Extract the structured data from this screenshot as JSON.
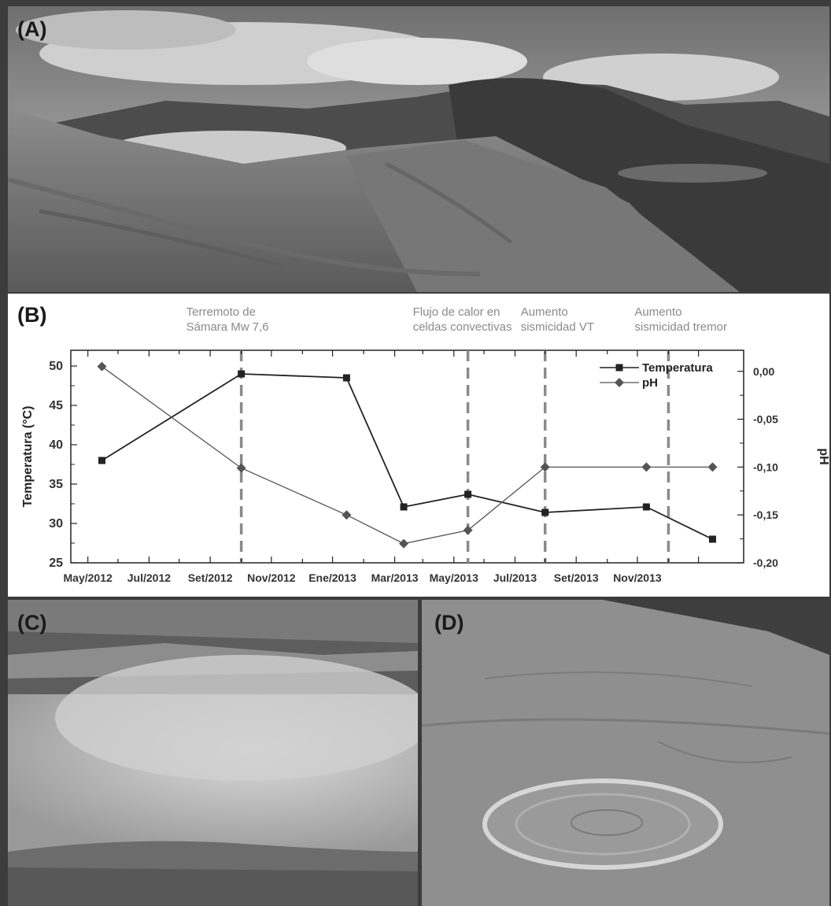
{
  "panels": {
    "a_label": "(A)",
    "b_label": "(B)",
    "c_label": "(C)",
    "d_label": "(D)"
  },
  "colors": {
    "temperature": "#222222",
    "ph": "#555555",
    "event_lines": "#8a8a8a"
  },
  "chart_data": {
    "type": "line",
    "x": [
      "2012-04-15",
      "2012-09-01",
      "2012-12-15",
      "2013-02-10",
      "2013-04-15",
      "2013-07-01",
      "2013-10-10",
      "2013-12-15"
    ],
    "x_ticks": [
      "May/2012",
      "Jul/2012",
      "Set/2012",
      "Nov/2012",
      "Ene/2013",
      "Mar/2013",
      "May/2013",
      "Jul/2013",
      "Set/2013",
      "Nov/2013"
    ],
    "ylabel": "Temperatura (°C)",
    "ylabel_right": "pH",
    "ylim": [
      25,
      52
    ],
    "ylim_right": [
      -0.2,
      0.022
    ],
    "y_ticks": [
      "25",
      "30",
      "35",
      "40",
      "45",
      "50"
    ],
    "y_ticks_right": [
      "0,00",
      "-0,05",
      "-0,10",
      "-0,15",
      "-0,20"
    ],
    "series": [
      {
        "name": "Temperatura",
        "axis": "left",
        "marker": "square",
        "points": [
          {
            "x": "2012-04-15",
            "y": 38.0
          },
          {
            "x": "2012-09-01",
            "y": 49.0
          },
          {
            "x": "2012-12-15",
            "y": 48.5
          },
          {
            "x": "2013-02-10",
            "y": 32.1
          },
          {
            "x": "2013-04-15",
            "y": 33.7
          },
          {
            "x": "2013-07-01",
            "y": 31.4
          },
          {
            "x": "2013-10-10",
            "y": 32.1
          },
          {
            "x": "2013-12-15",
            "y": 28.0
          }
        ]
      },
      {
        "name": "pH",
        "axis": "right",
        "marker": "diamond",
        "points": [
          {
            "x": "2012-04-15",
            "y": 0.005
          },
          {
            "x": "2012-09-01",
            "y": -0.101
          },
          {
            "x": "2012-12-15",
            "y": -0.15
          },
          {
            "x": "2013-02-10",
            "y": -0.18
          },
          {
            "x": "2013-04-15",
            "y": -0.166
          },
          {
            "x": "2013-07-01",
            "y": -0.1
          },
          {
            "x": "2013-10-10",
            "y": -0.1
          },
          {
            "x": "2013-12-15",
            "y": -0.1
          }
        ]
      }
    ],
    "events": [
      {
        "x": "2012-09-01",
        "line1": "Terremoto de",
        "line2": "Sámara Mw 7,6"
      },
      {
        "x": "2013-04-15",
        "line1": "Flujo de calor en",
        "line2": "celdas convectivas"
      },
      {
        "x": "2013-07-01",
        "line1": "Aumento",
        "line2": "sismicidad VT"
      },
      {
        "x": "2013-11-01",
        "line1": "Aumento",
        "line2": "sismicidad tremor"
      }
    ],
    "legend_position": "top-right"
  }
}
